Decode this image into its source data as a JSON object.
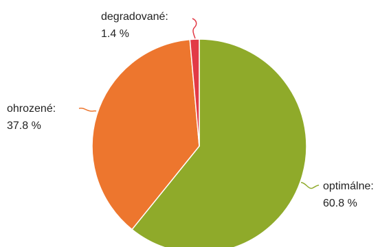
{
  "chart_data": {
    "type": "pie",
    "title": "",
    "slices": [
      {
        "category": "optimálne:",
        "value_label": "60.8 %",
        "value": 60.8,
        "color": "#8faa2a"
      },
      {
        "category": "ohrozené:",
        "value_label": "37.8 %",
        "value": 37.8,
        "color": "#ed762e"
      },
      {
        "category": "degradované:",
        "value_label": "1.4 %",
        "value": 1.4,
        "color": "#e23a46"
      }
    ],
    "legend": "none",
    "start_angle_deg": 0,
    "direction": "clockwise"
  }
}
